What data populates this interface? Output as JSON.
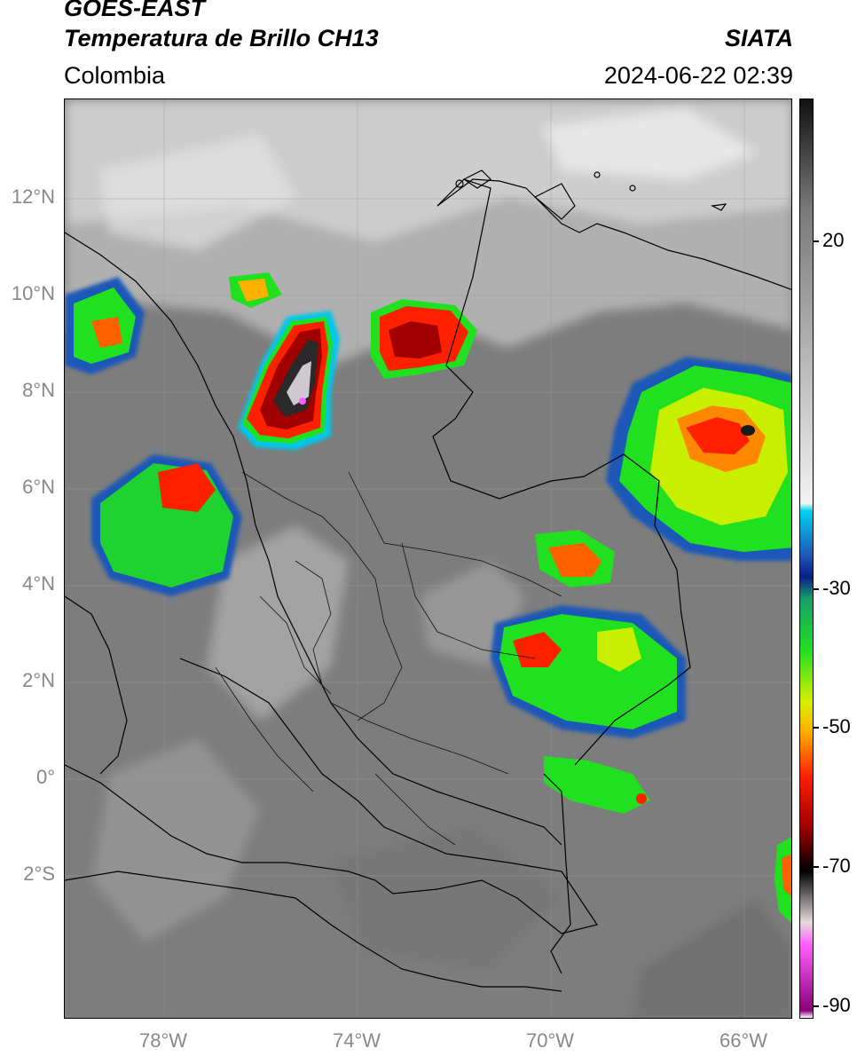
{
  "header": {
    "satellite": "GOES-EAST",
    "product": "Temperatura de Brillo CH13",
    "region": "Colombia",
    "source": "SIATA",
    "datetime": "2024-06-22 02:39"
  },
  "axes": {
    "lat_labels": [
      "12°N",
      "10°N",
      "8°N",
      "6°N",
      "4°N",
      "2°N",
      "0°",
      "2°S"
    ],
    "lon_labels": [
      "78°W",
      "74°W",
      "70°W",
      "66°W"
    ]
  },
  "colorbar": {
    "labels": [
      "20",
      "-30",
      "-50",
      "-70",
      "-90"
    ],
    "stops": [
      {
        "value": 35,
        "color": "#111111"
      },
      {
        "value": 20,
        "color": "#7a7a7a"
      },
      {
        "value": -20,
        "color": "#f2f2f2"
      },
      {
        "value": -21,
        "color": "#00d2f0"
      },
      {
        "value": -27,
        "color": "#1f58b8"
      },
      {
        "value": -30,
        "color": "#0a1e8a"
      },
      {
        "value": -33,
        "color": "#17a06a"
      },
      {
        "value": -40,
        "color": "#20e020"
      },
      {
        "value": -47,
        "color": "#d8f000"
      },
      {
        "value": -51,
        "color": "#ffb000"
      },
      {
        "value": -57,
        "color": "#ff2000"
      },
      {
        "value": -64,
        "color": "#a00000"
      },
      {
        "value": -70,
        "color": "#000000"
      },
      {
        "value": -77,
        "color": "#e6dada"
      },
      {
        "value": -80,
        "color": "#ff60ff"
      },
      {
        "value": -89,
        "color": "#8a007a"
      },
      {
        "value": -90,
        "color": "#ffffff"
      }
    ]
  }
}
